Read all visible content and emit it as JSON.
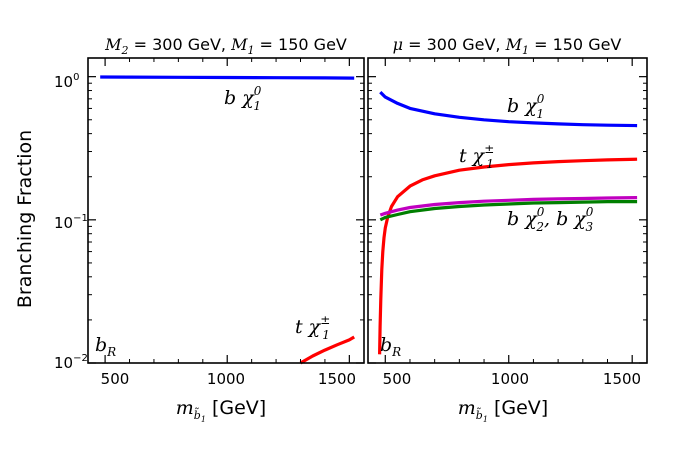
{
  "chart_data": {
    "ylabel": "Branching Fraction",
    "yscale": "log",
    "ylim": [
      0.01,
      1.35
    ],
    "y_ticks": [
      {
        "value": 1,
        "mantissa": "10",
        "exp": "0"
      },
      {
        "value": 0.1,
        "mantissa": "10",
        "exp": "−1"
      },
      {
        "value": 0.01,
        "mantissa": "10",
        "exp": "−2"
      }
    ],
    "panels": [
      {
        "type": "line",
        "title_parts": [
          "M",
          "2",
          " = 300 GeV, ",
          "M",
          "1",
          " = 150 GeV"
        ],
        "xlabel_parts": [
          "m",
          "b̃",
          "1",
          " [GeV]"
        ],
        "xlim": [
          430,
          1560
        ],
        "x_ticks": [
          "500",
          "1000",
          "1500"
        ],
        "corner_label": {
          "main": "b",
          "sub": "R"
        },
        "series": [
          {
            "name": "b chi_1^0",
            "label": {
              "pre": "b χ",
              "sub": "1",
              "sup": "0"
            },
            "color": "#0000ff",
            "x": [
              480,
              600,
              800,
              1000,
              1200,
              1400,
              1520
            ],
            "y": [
              0.995,
              0.993,
              0.99,
              0.987,
              0.984,
              0.98,
              0.977
            ]
          },
          {
            "name": "t chi_1^+-",
            "label": {
              "pre": "t χ",
              "sub": "1",
              "sup": "±"
            },
            "color": "#ff0000",
            "x": [
              1300,
              1350,
              1400,
              1450,
              1500,
              1520
            ],
            "y": [
              0.01,
              0.0112,
              0.0123,
              0.0134,
              0.0145,
              0.0152
            ]
          }
        ]
      },
      {
        "type": "line",
        "title_parts": [
          "μ",
          "",
          " = 300 GeV, ",
          "M",
          "1",
          " = 150 GeV"
        ],
        "xlabel_parts": [
          "m",
          "b̃",
          "1",
          " [GeV]"
        ],
        "xlim": [
          430,
          1560
        ],
        "x_ticks": [
          "500",
          "1000",
          "1500"
        ],
        "corner_label": {
          "main": "b",
          "sub": "R"
        },
        "series": [
          {
            "name": "b chi_1^0",
            "label": {
              "pre": "b χ",
              "sub": "1",
              "sup": "0"
            },
            "color": "#0000ff",
            "x": [
              480,
              500,
              550,
              600,
              700,
              800,
              900,
              1000,
              1100,
              1200,
              1300,
              1400,
              1520
            ],
            "y": [
              0.78,
              0.72,
              0.65,
              0.6,
              0.55,
              0.52,
              0.5,
              0.485,
              0.475,
              0.468,
              0.462,
              0.458,
              0.455
            ]
          },
          {
            "name": "t chi_1^+-",
            "label": {
              "pre": "t χ",
              "sub": "1",
              "sup": "±"
            },
            "color": "#ff0000",
            "x": [
              477,
              479,
              482,
              486,
              490,
              495,
              500,
              510,
              525,
              550,
              600,
              650,
              700,
              800,
              900,
              1000,
              1100,
              1200,
              1300,
              1400,
              1520
            ],
            "y": [
              0.0115,
              0.018,
              0.028,
              0.045,
              0.06,
              0.075,
              0.088,
              0.105,
              0.124,
              0.145,
              0.172,
              0.19,
              0.203,
              0.222,
              0.234,
              0.243,
              0.25,
              0.255,
              0.259,
              0.262,
              0.265
            ]
          },
          {
            "name": "b chi_2^0 (magenta)",
            "label": {
              "pre": "",
              "sub": "",
              "sup": ""
            },
            "color": "#c000c0",
            "x": [
              480,
              500,
              550,
              600,
              700,
              800,
              900,
              1000,
              1100,
              1200,
              1300,
              1400,
              1520
            ],
            "y": [
              0.108,
              0.111,
              0.117,
              0.122,
              0.128,
              0.132,
              0.135,
              0.137,
              0.139,
              0.14,
              0.141,
              0.142,
              0.143
            ]
          },
          {
            "name": "b chi_2^0, b chi_3^0 (green)",
            "label": {
              "pre": "b χ",
              "sub": "2",
              "sup": "0",
              "mid": ", b χ",
              "sub2": "3",
              "sup2": "0"
            },
            "color": "#007f00",
            "x": [
              480,
              500,
              550,
              600,
              700,
              800,
              900,
              1000,
              1100,
              1200,
              1300,
              1400,
              1520
            ],
            "y": [
              0.1,
              0.104,
              0.109,
              0.114,
              0.12,
              0.124,
              0.127,
              0.129,
              0.131,
              0.132,
              0.133,
              0.134,
              0.134
            ]
          }
        ]
      }
    ]
  }
}
